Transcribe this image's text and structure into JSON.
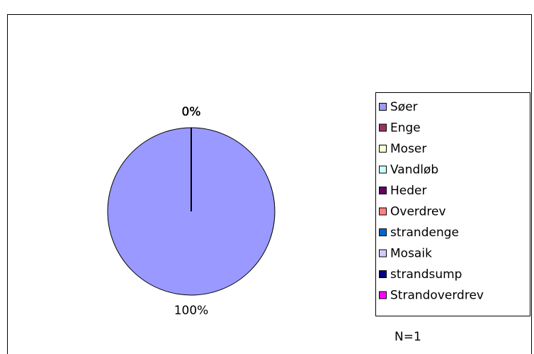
{
  "chart_data": {
    "type": "pie",
    "categories": [
      "Søer",
      "Enge",
      "Moser",
      "Vandløb",
      "Heder",
      "Overdrev",
      "strandenge",
      "Mosaik",
      "strandsump",
      "Strandoverdrev"
    ],
    "values": [
      100,
      0,
      0,
      0,
      0,
      0,
      0,
      0,
      0,
      0
    ],
    "value_labels": [
      "100%",
      "0%",
      "0%",
      "0%",
      "0%",
      "0%",
      "0%",
      "0%",
      "0%",
      "0%"
    ],
    "colors": [
      "#9999ff",
      "#993366",
      "#ffffcc",
      "#ccffff",
      "#660066",
      "#ff8080",
      "#0066cc",
      "#ccccff",
      "#000080",
      "#ff00ff"
    ],
    "annotation": "N=1",
    "legend": "right"
  }
}
